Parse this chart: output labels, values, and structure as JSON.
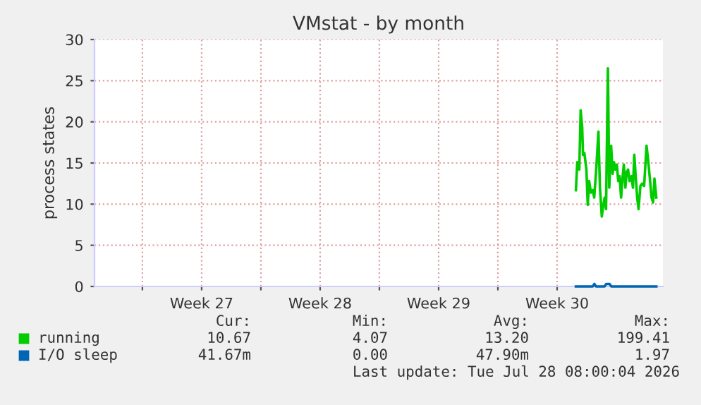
{
  "chart_data": {
    "type": "line",
    "title": "VMstat - by month",
    "ylabel": "process states",
    "xlim": [
      "2026-06-26T04:05",
      "2026-07-29T18:00"
    ],
    "ylim": [
      0,
      30
    ],
    "yticks": [
      0,
      5,
      10,
      15,
      20,
      25,
      30
    ],
    "xticks": [
      {
        "value": "2026-06-29",
        "label": null
      },
      {
        "value": "2026-07-02T12:00",
        "label": "Week 27"
      },
      {
        "value": "2026-07-06",
        "label": null
      },
      {
        "value": "2026-07-09T12:00",
        "label": "Week 28"
      },
      {
        "value": "2026-07-13",
        "label": null
      },
      {
        "value": "2026-07-16T12:00",
        "label": "Week 29"
      },
      {
        "value": "2026-07-20",
        "label": null
      },
      {
        "value": "2026-07-23T12:00",
        "label": "Week 30"
      }
    ],
    "grid": true,
    "legend": "bottom",
    "marker": "none",
    "line_style": "solid",
    "series": [
      {
        "name": "running",
        "color": "#00cc00",
        "x": [
          "2026-07-24T14:38",
          "2026-07-24T16:34",
          "2026-07-24T19:26",
          "2026-07-24T21:22",
          "2026-07-24T23:31",
          "2026-07-25T00:43",
          "2026-07-25T02:38",
          "2026-07-25T05:31",
          "2026-07-25T07:26",
          "2026-07-25T09:22",
          "2026-07-25T12:00",
          "2026-07-25T14:38",
          "2026-07-25T16:34",
          "2026-07-25T19:26",
          "2026-07-25T22:34",
          "2026-07-26T00:43",
          "2026-07-26T03:22",
          "2026-07-26T05:31",
          "2026-07-26T07:26",
          "2026-07-26T09:22",
          "2026-07-26T12:00",
          "2026-07-26T13:55",
          "2026-07-26T16:34",
          "2026-07-26T18:43",
          "2026-07-26T20:38",
          "2026-07-26T22:34",
          "2026-07-27T00:43",
          "2026-07-27T02:38",
          "2026-07-27T04:34",
          "2026-07-27T06:43",
          "2026-07-27T08:38",
          "2026-07-27T10:34",
          "2026-07-27T12:43",
          "2026-07-27T14:38",
          "2026-07-27T16:34",
          "2026-07-27T18:43",
          "2026-07-27T21:22",
          "2026-07-27T23:31",
          "2026-07-28T01:26",
          "2026-07-28T03:22",
          "2026-07-28T05:31",
          "2026-07-28T07:26",
          "2026-07-28T10:05",
          "2026-07-28T12:43",
          "2026-07-28T15:22",
          "2026-07-28T18:43",
          "2026-07-28T20:38",
          "2026-07-28T23:31",
          "2026-07-29T01:55",
          "2026-07-29T04:05",
          "2026-07-29T06:00",
          "2026-07-29T08:38"
        ],
        "values": [
          11.7,
          15.1,
          14.2,
          21.4,
          19.4,
          16.0,
          16.2,
          14.2,
          9.9,
          12.8,
          11.4,
          11.7,
          10.8,
          14.2,
          18.8,
          12.0,
          8.5,
          9.9,
          10.8,
          9.4,
          26.5,
          12.0,
          17.1,
          13.7,
          15.1,
          14.2,
          14.8,
          12.8,
          13.4,
          10.8,
          13.1,
          14.8,
          12.0,
          13.9,
          14.2,
          12.8,
          13.4,
          12.0,
          16.0,
          13.4,
          10.8,
          9.4,
          12.2,
          12.5,
          12.2,
          17.1,
          15.7,
          13.1,
          10.8,
          10.2,
          13.1,
          10.8
        ]
      },
      {
        "name": "I/O sleep",
        "color": "#0066b3",
        "x": [
          "2026-07-24T14:38",
          "2026-07-25T14:24",
          "2026-07-25T16:48",
          "2026-07-25T19:12",
          "2026-07-26T07:12",
          "2026-07-26T09:36",
          "2026-07-26T14:24",
          "2026-07-26T16:48",
          "2026-07-29T08:38"
        ],
        "values": [
          0,
          0,
          0.3,
          0,
          0,
          0.3,
          0.3,
          0,
          0
        ]
      }
    ],
    "annotations": [
      "Cur:",
      "Min:",
      "Avg:",
      "Max:",
      "10.67",
      "4.07",
      "13.20",
      "199.41",
      "41.67m",
      "0.00",
      "47.90m",
      "1.97",
      "Last update: Tue Jul 28 08:00:04 2026"
    ]
  }
}
